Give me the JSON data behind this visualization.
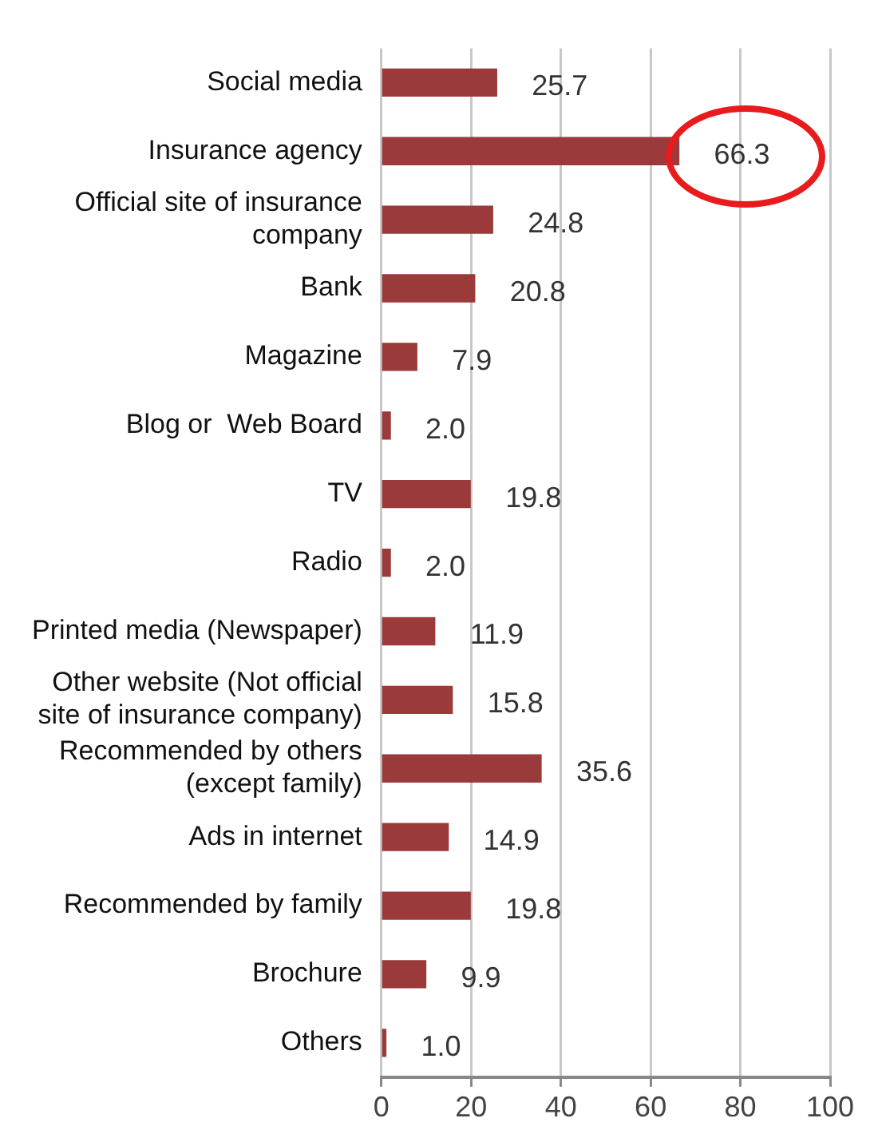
{
  "chart_data": {
    "type": "bar",
    "orientation": "horizontal",
    "categories": [
      "Social media",
      "Insurance agency",
      "Official site of insurance\ncompany",
      "Bank",
      "Magazine",
      "Blog or  Web Board",
      "TV",
      "Radio",
      "Printed media (Newspaper)",
      "Other website (Not official\nsite of insurance company)",
      "Recommended by others\n(except family)",
      "Ads in internet",
      "Recommended by family",
      "Brochure",
      "Others"
    ],
    "values": [
      25.7,
      66.3,
      24.8,
      20.8,
      7.9,
      2.0,
      19.8,
      2.0,
      11.9,
      15.8,
      35.6,
      14.9,
      19.8,
      9.9,
      1.0
    ],
    "value_labels": [
      "25.7",
      "66.3",
      "24.8",
      "20.8",
      "7.9",
      "2.0",
      "19.8",
      "2.0",
      "11.9",
      "15.8",
      "35.6",
      "14.9",
      "19.8",
      "9.9",
      "1.0"
    ],
    "color": "#9b3a3a",
    "xlim": [
      0,
      100
    ],
    "xticks": [
      0,
      20,
      40,
      60,
      80,
      100
    ],
    "grid": "x"
  }
}
